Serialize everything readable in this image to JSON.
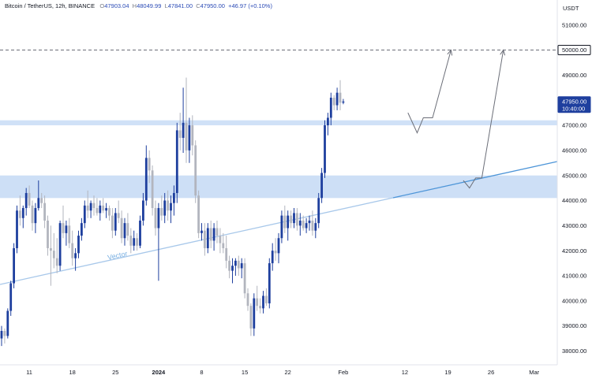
{
  "header": {
    "symbol": "Bitcoin / TetherUS, 12h, BINANCE",
    "open_label": "O",
    "open": "47903.04",
    "high_label": "H",
    "high": "48049.99",
    "low_label": "L",
    "low": "47841.00",
    "close_label": "C",
    "close": "47950.00",
    "change": "+46.97 (+0.10%)"
  },
  "currency": "USDT",
  "colors": {
    "up": "#1e3f9e",
    "down": "#b2b5be",
    "zone": "#c4d9f5",
    "trendline": "#a8c8ea",
    "trendline_strong": "#4d95d8",
    "arrow": "#6b6e78",
    "tag_blue": "#1e3f9e",
    "tag_dark": "#131722"
  },
  "price_tags": {
    "target": "50000.00",
    "last_price": "47950.00",
    "countdown": "10:40:00"
  },
  "trendline_label": "Vector",
  "chart_data": {
    "type": "candlestick",
    "symbol": "Bitcoin / TetherUS",
    "interval": "12h",
    "exchange": "BINANCE",
    "y_ticks": [
      38000,
      39000,
      40000,
      41000,
      42000,
      43000,
      44000,
      45000,
      46000,
      47000,
      48000,
      49000,
      50000,
      51000
    ],
    "ylim": [
      37700,
      51400
    ],
    "x_ticks": [
      {
        "label": "11",
        "index": 9
      },
      {
        "label": "18",
        "index": 23
      },
      {
        "label": "25",
        "index": 37
      },
      {
        "label": "2024",
        "index": 51
      },
      {
        "label": "8",
        "index": 65
      },
      {
        "label": "15",
        "index": 79
      },
      {
        "label": "22",
        "index": 93
      },
      {
        "label": "Feb",
        "index": 111
      },
      {
        "label": "12",
        "index": 131
      },
      {
        "label": "19",
        "index": 145
      },
      {
        "label": "26",
        "index": 159
      },
      {
        "label": "Mar",
        "index": 173
      }
    ],
    "candles": [
      [
        38500,
        39000,
        38200,
        38800
      ],
      [
        38800,
        38900,
        38300,
        38600
      ],
      [
        38600,
        39700,
        38500,
        39600
      ],
      [
        39600,
        40800,
        39400,
        40700
      ],
      [
        40700,
        42300,
        40500,
        42100
      ],
      [
        42100,
        43800,
        41900,
        43600
      ],
      [
        43600,
        44200,
        43000,
        43300
      ],
      [
        43300,
        43800,
        42900,
        43700
      ],
      [
        43700,
        44500,
        43400,
        44300
      ],
      [
        44300,
        44600,
        43700,
        43800
      ],
      [
        43800,
        44000,
        42800,
        43100
      ],
      [
        43100,
        43900,
        42700,
        43700
      ],
      [
        43700,
        44800,
        43600,
        44100
      ],
      [
        44100,
        44300,
        43700,
        43900
      ],
      [
        43900,
        44200,
        42900,
        43200
      ],
      [
        43200,
        43400,
        41800,
        42100
      ],
      [
        42100,
        43000,
        40600,
        42000
      ],
      [
        42000,
        42700,
        41300,
        41700
      ],
      [
        41700,
        42500,
        41100,
        41400
      ],
      [
        41400,
        43200,
        41200,
        43100
      ],
      [
        43100,
        43800,
        42500,
        42700
      ],
      [
        42700,
        43200,
        42200,
        43000
      ],
      [
        43000,
        43300,
        42100,
        42300
      ],
      [
        42300,
        42800,
        41400,
        41700
      ],
      [
        41700,
        42100,
        41200,
        41900
      ],
      [
        41900,
        42800,
        41700,
        42600
      ],
      [
        42600,
        43300,
        42400,
        43100
      ],
      [
        43100,
        44000,
        42900,
        43800
      ],
      [
        43800,
        44400,
        43300,
        43600
      ],
      [
        43600,
        44000,
        43300,
        43900
      ],
      [
        43900,
        44200,
        43400,
        43700
      ],
      [
        43700,
        44100,
        43400,
        43500
      ],
      [
        43500,
        44000,
        43200,
        43800
      ],
      [
        43800,
        44100,
        43500,
        43600
      ],
      [
        43600,
        43900,
        43300,
        43700
      ],
      [
        43700,
        43800,
        43200,
        43400
      ],
      [
        43400,
        43700,
        42500,
        42800
      ],
      [
        42800,
        43700,
        42600,
        43500
      ],
      [
        43500,
        44000,
        43100,
        43300
      ],
      [
        43300,
        43600,
        42300,
        42500
      ],
      [
        42500,
        43300,
        42200,
        43100
      ],
      [
        43100,
        43500,
        42400,
        42600
      ],
      [
        42600,
        42900,
        41900,
        42200
      ],
      [
        42200,
        42800,
        42000,
        42500
      ],
      [
        42500,
        42700,
        42000,
        42200
      ],
      [
        42200,
        43400,
        42100,
        43200
      ],
      [
        43200,
        44300,
        43000,
        44000
      ],
      [
        44000,
        46200,
        43800,
        45700
      ],
      [
        45700,
        46000,
        44700,
        45200
      ],
      [
        45200,
        45400,
        43400,
        43700
      ],
      [
        43700,
        44000,
        42600,
        42900
      ],
      [
        42900,
        43900,
        40800,
        43700
      ],
      [
        43700,
        44200,
        43200,
        43400
      ],
      [
        43400,
        44300,
        43100,
        44000
      ],
      [
        44000,
        44400,
        43200,
        43600
      ],
      [
        43600,
        44200,
        43100,
        43900
      ],
      [
        43900,
        44600,
        43400,
        44300
      ],
      [
        44300,
        47100,
        43900,
        46800
      ],
      [
        46800,
        47500,
        46000,
        46500
      ],
      [
        46500,
        48500,
        45900,
        47100
      ],
      [
        47100,
        48900,
        45500,
        46000
      ],
      [
        46000,
        47300,
        45500,
        47000
      ],
      [
        47000,
        47400,
        45800,
        46200
      ],
      [
        46200,
        46400,
        43900,
        44200
      ],
      [
        44200,
        44400,
        42500,
        42700
      ],
      [
        42700,
        43100,
        42400,
        42800
      ],
      [
        42800,
        43100,
        41800,
        42100
      ],
      [
        42100,
        43100,
        41900,
        42900
      ],
      [
        42900,
        43200,
        42100,
        42400
      ],
      [
        42400,
        43100,
        42000,
        42900
      ],
      [
        42900,
        43200,
        42300,
        42600
      ],
      [
        42600,
        42900,
        41900,
        42300
      ],
      [
        42300,
        42700,
        41900,
        42100
      ],
      [
        42100,
        42600,
        41300,
        41600
      ],
      [
        41600,
        41800,
        40900,
        41200
      ],
      [
        41200,
        41700,
        40700,
        41400
      ],
      [
        41400,
        41700,
        41000,
        41600
      ],
      [
        41600,
        41800,
        41000,
        41300
      ],
      [
        41300,
        41700,
        40900,
        41500
      ],
      [
        41500,
        41700,
        40100,
        40300
      ],
      [
        40300,
        40500,
        39600,
        39800
      ],
      [
        39800,
        39900,
        38600,
        38900
      ],
      [
        38900,
        40300,
        38600,
        40100
      ],
      [
        40100,
        40600,
        39600,
        39800
      ],
      [
        39800,
        40100,
        39500,
        39700
      ],
      [
        39700,
        40400,
        39500,
        40200
      ],
      [
        40200,
        40500,
        39800,
        39900
      ],
      [
        39900,
        41700,
        39700,
        41500
      ],
      [
        41500,
        42300,
        41200,
        42000
      ],
      [
        42000,
        42500,
        41600,
        41900
      ],
      [
        41900,
        42700,
        41500,
        42500
      ],
      [
        42500,
        43600,
        42300,
        43400
      ],
      [
        43400,
        43800,
        42700,
        42900
      ],
      [
        42900,
        43600,
        42400,
        43400
      ],
      [
        43400,
        43600,
        42900,
        43100
      ],
      [
        43100,
        43700,
        42900,
        43500
      ],
      [
        43500,
        43700,
        42800,
        43000
      ],
      [
        43000,
        43500,
        42600,
        43200
      ],
      [
        43200,
        43400,
        42800,
        42900
      ],
      [
        42900,
        43300,
        42700,
        43100
      ],
      [
        43100,
        43400,
        42800,
        43200
      ],
      [
        43200,
        43600,
        42600,
        42800
      ],
      [
        42800,
        43300,
        42500,
        43100
      ],
      [
        43100,
        44300,
        42900,
        44100
      ],
      [
        44100,
        45300,
        43900,
        45100
      ],
      [
        45100,
        47200,
        44900,
        47000
      ],
      [
        47000,
        47500,
        46600,
        47300
      ],
      [
        47300,
        48300,
        47000,
        48100
      ],
      [
        48100,
        48200,
        47600,
        47800
      ],
      [
        47800,
        48500,
        47600,
        48300
      ],
      [
        48300,
        48800,
        47600,
        47900
      ],
      [
        47903,
        48050,
        47841,
        47950
      ]
    ],
    "annotations": {
      "support_zone": [
        44100,
        45000
      ],
      "resistance_zone": [
        47000,
        47200
      ],
      "target_line": 50000,
      "trendline_label": "Vector",
      "projection_paths": [
        {
          "name": "path-1",
          "points": [
            [
              132,
              47500
            ],
            [
              135,
              46700
            ],
            [
              137,
              47300
            ],
            [
              140,
              47300
            ],
            [
              146,
              50000
            ]
          ]
        },
        {
          "name": "path-2",
          "points": [
            [
              150,
              44800
            ],
            [
              152,
              44500
            ],
            [
              154,
              44900
            ],
            [
              156,
              44900
            ],
            [
              163,
              50000
            ]
          ]
        }
      ]
    }
  }
}
